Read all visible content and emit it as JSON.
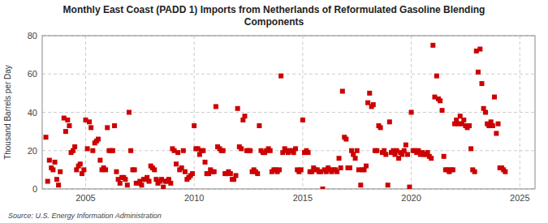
{
  "chart_data": {
    "type": "scatter",
    "title": "Monthly East Coast (PADD 1) Imports from Netherlands of Reformulated Gasoline Blending\nComponents",
    "y_label": "Thousand Barrels per Day",
    "source": "Source: U.S. Energy Information Administration",
    "color": "#cc0000",
    "marker": "square",
    "grid": true,
    "xlim": [
      2003.0,
      2025.7
    ],
    "xticks": [
      2005,
      2010,
      2015,
      2020,
      2025
    ],
    "ylim": [
      0,
      80
    ],
    "yticks": [
      0,
      20,
      40,
      60,
      80
    ],
    "x": [
      2003.17,
      2003.25,
      2003.33,
      2003.42,
      2003.5,
      2003.58,
      2003.67,
      2003.75,
      2003.83,
      2004.0,
      2004.08,
      2004.17,
      2004.25,
      2004.33,
      2004.42,
      2004.5,
      2004.58,
      2004.67,
      2004.75,
      2004.83,
      2004.92,
      2005.0,
      2005.08,
      2005.17,
      2005.25,
      2005.33,
      2005.42,
      2005.5,
      2005.58,
      2005.67,
      2005.75,
      2005.83,
      2005.92,
      2006.0,
      2006.08,
      2006.17,
      2006.25,
      2006.33,
      2006.42,
      2006.5,
      2006.58,
      2006.67,
      2006.75,
      2006.83,
      2006.92,
      2007.0,
      2007.08,
      2007.17,
      2007.25,
      2007.33,
      2007.42,
      2007.5,
      2007.58,
      2007.67,
      2007.75,
      2007.83,
      2007.92,
      2008.0,
      2008.08,
      2008.17,
      2008.25,
      2008.33,
      2008.42,
      2008.5,
      2008.58,
      2008.67,
      2008.75,
      2008.83,
      2008.92,
      2009.0,
      2009.08,
      2009.17,
      2009.25,
      2009.33,
      2009.42,
      2009.5,
      2009.58,
      2009.67,
      2009.75,
      2009.83,
      2009.92,
      2010.0,
      2010.08,
      2010.17,
      2010.25,
      2010.33,
      2010.42,
      2010.5,
      2010.58,
      2010.67,
      2010.75,
      2010.83,
      2010.92,
      2011.0,
      2011.08,
      2011.17,
      2011.25,
      2011.33,
      2011.42,
      2011.5,
      2011.58,
      2011.67,
      2011.75,
      2011.83,
      2011.92,
      2012.0,
      2012.08,
      2012.17,
      2012.25,
      2012.33,
      2012.42,
      2012.5,
      2012.58,
      2012.67,
      2012.75,
      2012.83,
      2012.92,
      2013.0,
      2013.08,
      2013.17,
      2013.25,
      2013.33,
      2013.42,
      2013.5,
      2013.58,
      2013.67,
      2013.75,
      2013.83,
      2013.92,
      2014.0,
      2014.08,
      2014.17,
      2014.25,
      2014.33,
      2014.42,
      2014.5,
      2014.58,
      2014.67,
      2014.75,
      2014.83,
      2014.92,
      2015.0,
      2015.08,
      2015.17,
      2015.25,
      2015.33,
      2015.42,
      2015.5,
      2015.58,
      2015.67,
      2015.75,
      2015.83,
      2015.92,
      2016.0,
      2016.08,
      2016.17,
      2016.25,
      2016.33,
      2016.42,
      2016.5,
      2016.58,
      2016.67,
      2016.75,
      2016.83,
      2016.92,
      2017.0,
      2017.08,
      2017.17,
      2017.25,
      2017.33,
      2017.42,
      2017.5,
      2017.58,
      2017.67,
      2017.75,
      2017.83,
      2017.92,
      2018.0,
      2018.08,
      2018.17,
      2018.25,
      2018.33,
      2018.42,
      2018.5,
      2018.58,
      2018.67,
      2018.75,
      2018.83,
      2018.92,
      2019.0,
      2019.08,
      2019.17,
      2019.25,
      2019.33,
      2019.42,
      2019.5,
      2019.58,
      2019.67,
      2019.75,
      2019.83,
      2019.92,
      2020.0,
      2020.08,
      2020.17,
      2020.25,
      2020.33,
      2020.42,
      2020.5,
      2020.58,
      2020.67,
      2020.75,
      2020.83,
      2020.92,
      2021.0,
      2021.08,
      2021.17,
      2021.25,
      2021.33,
      2021.42,
      2021.5,
      2021.58,
      2021.67,
      2021.75,
      2021.83,
      2021.92,
      2022.0,
      2022.08,
      2022.17,
      2022.25,
      2022.33,
      2022.42,
      2022.5,
      2022.58,
      2022.67,
      2022.75,
      2022.83,
      2022.92,
      2023.0,
      2023.08,
      2023.17,
      2023.25,
      2023.33,
      2023.42,
      2023.5,
      2023.58,
      2023.67,
      2023.75,
      2023.83,
      2023.92,
      2024.0,
      2024.08,
      2024.17,
      2024.25,
      2024.33
    ],
    "values": [
      27,
      4,
      15,
      11,
      10,
      14,
      5,
      2,
      9,
      37,
      30,
      36,
      33,
      19,
      20,
      22,
      10,
      12,
      13,
      8,
      10,
      36,
      21,
      35,
      32,
      20,
      24,
      25,
      26,
      15,
      10,
      11,
      10,
      32,
      20,
      20,
      20,
      33,
      9,
      5,
      3,
      6,
      6,
      5,
      2,
      40,
      20,
      10,
      10,
      3,
      3,
      4,
      2,
      5,
      5,
      6,
      4,
      12,
      11,
      10,
      5,
      3,
      4,
      5,
      1,
      4,
      4,
      5,
      3,
      21,
      20,
      13,
      19,
      10,
      11,
      20,
      9,
      5,
      6,
      7,
      8,
      33,
      21,
      21,
      18,
      20,
      20,
      14,
      8,
      8,
      10,
      9,
      9,
      43,
      22,
      21,
      20,
      20,
      8,
      8,
      9,
      8,
      5,
      5,
      7,
      42,
      22,
      21,
      36,
      38,
      20,
      20,
      20,
      9,
      10,
      9,
      8,
      33,
      20,
      19,
      19,
      20,
      21,
      20,
      9,
      10,
      10,
      9,
      10,
      59,
      19,
      21,
      20,
      19,
      20,
      20,
      19,
      21,
      10,
      9,
      10,
      36,
      19,
      20,
      19,
      9,
      9,
      11,
      10,
      10,
      9,
      9,
      0,
      10,
      9,
      11,
      10,
      9,
      10,
      10,
      9,
      16,
      11,
      51,
      27,
      26,
      11,
      11,
      20,
      18,
      16,
      20,
      10,
      2,
      10,
      10,
      12,
      45,
      50,
      43,
      44,
      20,
      20,
      33,
      32,
      19,
      20,
      18,
      2,
      35,
      19,
      20,
      18,
      20,
      16,
      19,
      18,
      20,
      23,
      18,
      1,
      40,
      20,
      20,
      19,
      20,
      18,
      19,
      18,
      18,
      19,
      17,
      16,
      75,
      48,
      59,
      47,
      46,
      41,
      17,
      10,
      10,
      9,
      10,
      10,
      34,
      36,
      34,
      38,
      34,
      36,
      33,
      32,
      33,
      21,
      10,
      9,
      72,
      61,
      73,
      55,
      42,
      40,
      34,
      33,
      35,
      33,
      48,
      29,
      34,
      11,
      11,
      10,
      9
    ]
  }
}
